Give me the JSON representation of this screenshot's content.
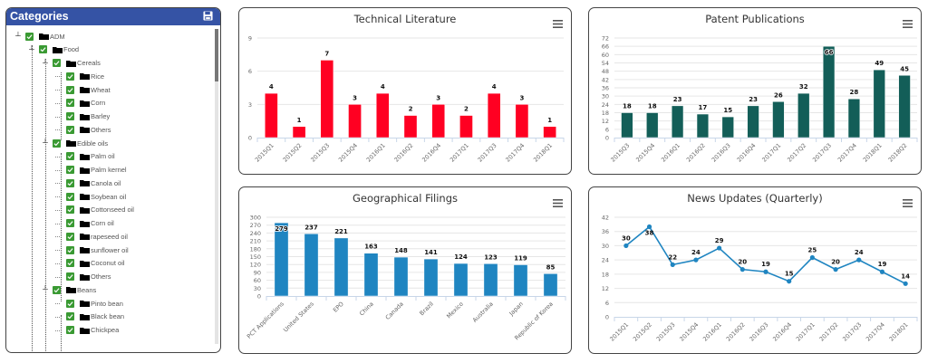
{
  "categories_panel": {
    "title": "Categories",
    "save_icon": "floppy-disk-icon",
    "tree": [
      {
        "label": "ADM",
        "level": 0,
        "expanded": true,
        "checked": true
      },
      {
        "label": "Food",
        "level": 1,
        "expanded": true,
        "checked": true
      },
      {
        "label": "Cereals",
        "level": 2,
        "expanded": true,
        "checked": true
      },
      {
        "label": "Rice",
        "level": 3,
        "checked": true
      },
      {
        "label": "Wheat",
        "level": 3,
        "checked": true
      },
      {
        "label": "Corn",
        "level": 3,
        "checked": true
      },
      {
        "label": "Barley",
        "level": 3,
        "checked": true
      },
      {
        "label": "Others",
        "level": 3,
        "checked": true
      },
      {
        "label": "Edible oils",
        "level": 2,
        "expanded": true,
        "checked": true
      },
      {
        "label": "Palm oil",
        "level": 3,
        "checked": true
      },
      {
        "label": "Palm kernel",
        "level": 3,
        "checked": true
      },
      {
        "label": "Canola oil",
        "level": 3,
        "checked": true
      },
      {
        "label": "Soybean oil",
        "level": 3,
        "checked": true
      },
      {
        "label": "Cottonseed oil",
        "level": 3,
        "checked": true
      },
      {
        "label": "Corn oil",
        "level": 3,
        "checked": true
      },
      {
        "label": "rapeseed oil",
        "level": 3,
        "checked": true
      },
      {
        "label": "sunflower oil",
        "level": 3,
        "checked": true
      },
      {
        "label": "Coconut oil",
        "level": 3,
        "checked": true
      },
      {
        "label": "Others",
        "level": 3,
        "checked": true
      },
      {
        "label": "Beans",
        "level": 2,
        "expanded": true,
        "checked": true
      },
      {
        "label": "Pinto bean",
        "level": 3,
        "checked": true
      },
      {
        "label": "Black bean",
        "level": 3,
        "checked": true
      },
      {
        "label": "Chickpea",
        "level": 3,
        "checked": true
      }
    ]
  },
  "colors": {
    "header": "#3553a5",
    "checkbox": "#3a9a33",
    "tech_bar": "#ff0022",
    "patent_bar": "#135e58",
    "geo_bar": "#1f85c1",
    "news_line": "#1f85c1"
  },
  "chart_data": [
    {
      "id": "technical-literature",
      "type": "bar",
      "title": "Technical Literature",
      "categories": [
        "2015Q1",
        "2015Q2",
        "2015Q3",
        "2015Q4",
        "2016Q1",
        "2016Q2",
        "2016Q4",
        "2017Q1",
        "2017Q3",
        "2017Q4",
        "2018Q1"
      ],
      "values": [
        4,
        1,
        7,
        3,
        4,
        2,
        3,
        2,
        4,
        3,
        1
      ],
      "yticks": [
        0,
        3,
        6,
        9
      ],
      "ylim": [
        0,
        9
      ],
      "xlabel": "",
      "ylabel": "",
      "grid": true,
      "data_labels": true,
      "color": "#ff0022"
    },
    {
      "id": "patent-publications",
      "type": "bar",
      "title": "Patent Publications",
      "categories": [
        "2015Q3",
        "2015Q4",
        "2016Q1",
        "2016Q2",
        "2016Q3",
        "2016Q4",
        "2017Q1",
        "2017Q2",
        "2017Q3",
        "2017Q4",
        "2018Q1",
        "2018Q2"
      ],
      "values": [
        18,
        18,
        23,
        17,
        15,
        23,
        26,
        32,
        66,
        28,
        49,
        45
      ],
      "yticks": [
        0,
        6,
        12,
        18,
        24,
        30,
        36,
        42,
        48,
        54,
        60,
        66,
        72
      ],
      "ylim": [
        0,
        72
      ],
      "xlabel": "",
      "ylabel": "",
      "grid": true,
      "data_labels": true,
      "color": "#135e58"
    },
    {
      "id": "geographical-filings",
      "type": "bar",
      "title": "Geographical Filings",
      "categories": [
        "PCT Applications",
        "United States",
        "EPO",
        "China",
        "Canada",
        "Brazil",
        "Mexico",
        "Australia",
        "Japan",
        "Republic of Korea"
      ],
      "values": [
        279,
        237,
        221,
        163,
        148,
        141,
        124,
        123,
        119,
        85
      ],
      "yticks": [
        0,
        30,
        60,
        90,
        120,
        150,
        180,
        210,
        240,
        270,
        300
      ],
      "ylim": [
        0,
        300
      ],
      "xlabel": "",
      "ylabel": "",
      "grid": true,
      "data_labels": true,
      "color": "#1f85c1"
    },
    {
      "id": "news-updates",
      "type": "line",
      "title": "News Updates (Quarterly)",
      "categories": [
        "2015Q1",
        "2015Q2",
        "2015Q3",
        "2015Q4",
        "2016Q1",
        "2016Q2",
        "2016Q3",
        "2016Q4",
        "2017Q1",
        "2017Q2",
        "2017Q3",
        "2017Q4",
        "2018Q1"
      ],
      "values": [
        30,
        38,
        22,
        24,
        29,
        20,
        19,
        15,
        25,
        20,
        24,
        19,
        14
      ],
      "yticks": [
        0,
        6,
        12,
        18,
        24,
        30,
        36,
        42
      ],
      "ylim": [
        0,
        42
      ],
      "xlabel": "",
      "ylabel": "",
      "grid": true,
      "data_labels": true,
      "color": "#1f85c1"
    }
  ]
}
